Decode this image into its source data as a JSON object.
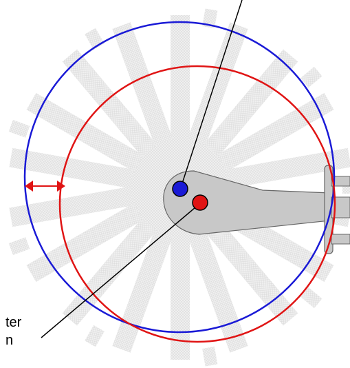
{
  "labels": {
    "lower_line1": "ter",
    "lower_line2": "n"
  },
  "colors": {
    "outer_circle": "#1a1ad6",
    "inner_circle": "#e01414",
    "blue_dot": "#1a1ad6",
    "red_dot": "#e01414",
    "arrow": "#e01414",
    "arm_fill": "#c8c8c8",
    "arm_stroke": "#666666",
    "ghost_spokes": "#cfcfcf"
  },
  "icons": {
    "arrow": "double-headed-arrow",
    "dots": "filled-circle"
  }
}
